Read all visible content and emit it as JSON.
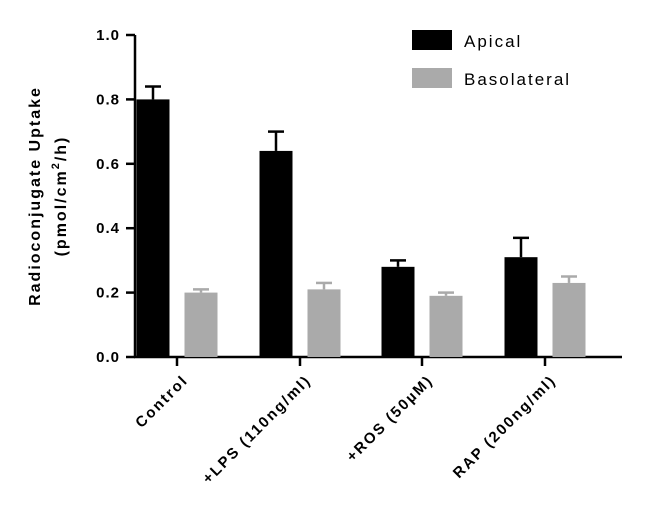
{
  "chart_data": {
    "type": "bar",
    "title": "",
    "xlabel": "",
    "ylabel_line1": "Radioconjugate Uptake",
    "ylabel_line2_parts": [
      "(pmol/cm",
      "2",
      "/h)"
    ],
    "categories": [
      "Control",
      "+LPS (110ng/ml)",
      "+ROS (50µM)",
      "RAP (200ng/ml)"
    ],
    "series": [
      {
        "name": "Apical",
        "color": "#000000",
        "values": [
          0.8,
          0.64,
          0.28,
          0.31
        ],
        "errors": [
          0.04,
          0.06,
          0.02,
          0.06
        ]
      },
      {
        "name": "Basolateral",
        "color": "#aaaaaa",
        "values": [
          0.2,
          0.21,
          0.19,
          0.23
        ],
        "errors": [
          0.01,
          0.02,
          0.01,
          0.02
        ]
      }
    ],
    "ylim": [
      0,
      1.0
    ],
    "yticks": [
      "0.0",
      "0.2",
      "0.4",
      "0.6",
      "0.8",
      "1.0"
    ],
    "grid": false,
    "legend_position": "top-right"
  }
}
